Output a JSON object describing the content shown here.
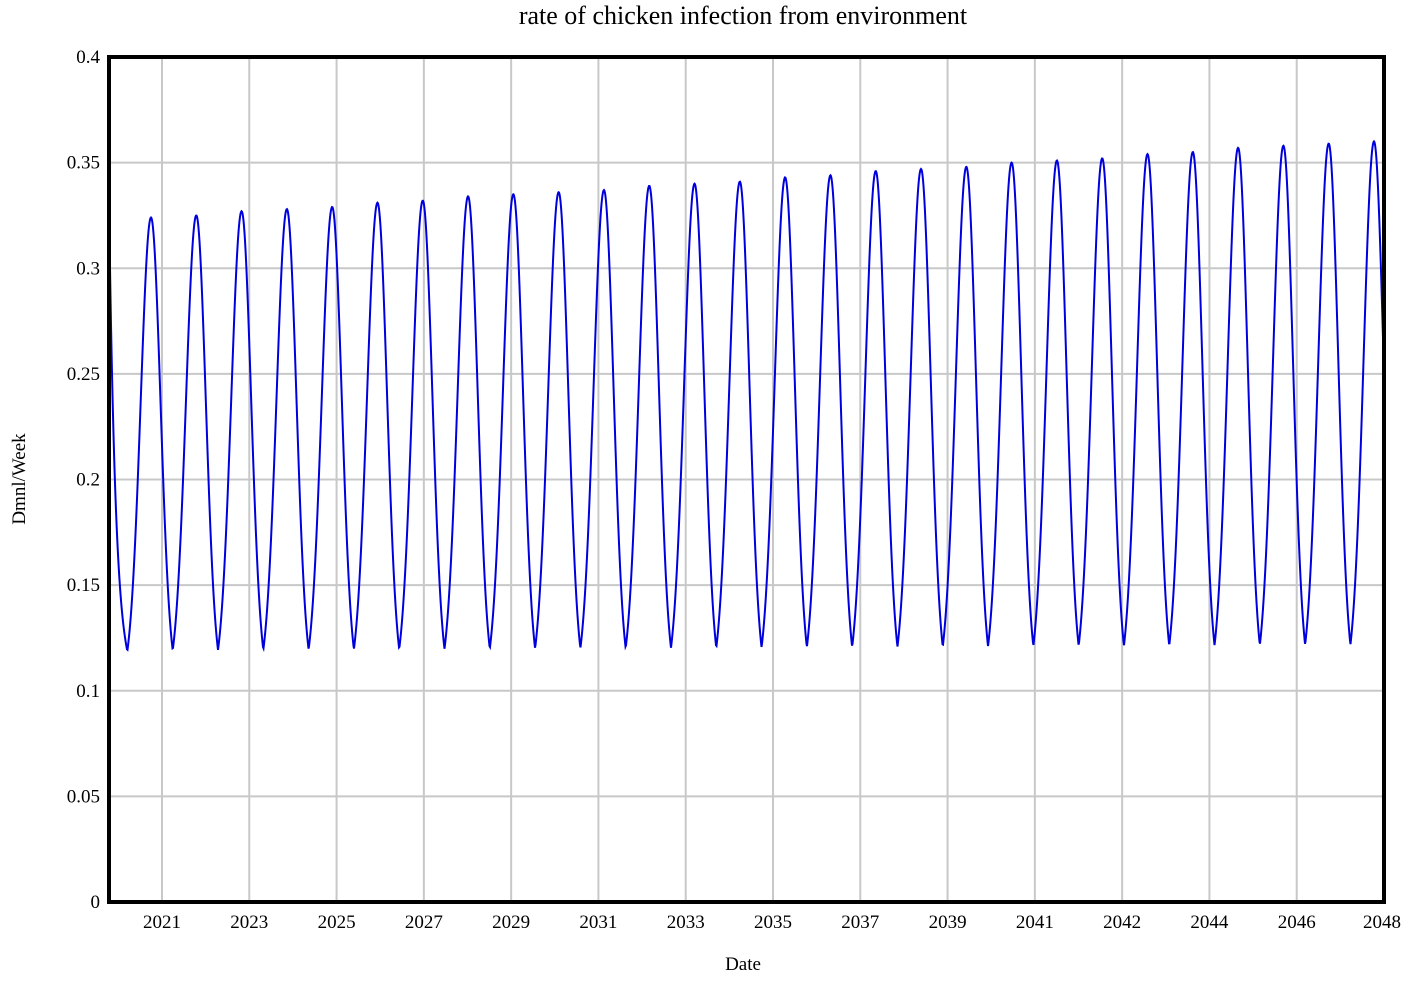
{
  "chart_data": {
    "type": "line",
    "title": "rate of chicken infection from environment",
    "xlabel": "Date",
    "ylabel": "Dmnl/Week",
    "ylim": [
      0,
      0.4
    ],
    "yticks": [
      "0",
      "0.05",
      "0.1",
      "0.15",
      "0.2",
      "0.25",
      "0.3",
      "0.35",
      "0.4"
    ],
    "xticks": [
      "2021",
      "2023",
      "2025",
      "2027",
      "2029",
      "2031",
      "2033",
      "2035",
      "2037",
      "2039",
      "2041",
      "2042",
      "2044",
      "2046",
      "2048"
    ],
    "grid": true,
    "line_color": "#0000dd",
    "series": [
      {
        "values_description_note": "",
        "start_value": 0.3,
        "end_value": 0.26,
        "trough_value": 0.103,
        "peaks": [
          0.324,
          0.325,
          0.327,
          0.328,
          0.329,
          0.331,
          0.332,
          0.334,
          0.335,
          0.336,
          0.337,
          0.339,
          0.34,
          0.341,
          0.343,
          0.344,
          0.346,
          0.347,
          0.348,
          0.35,
          0.351,
          0.352,
          0.354,
          0.355,
          0.357,
          0.358,
          0.359,
          0.36
        ]
      }
    ]
  }
}
